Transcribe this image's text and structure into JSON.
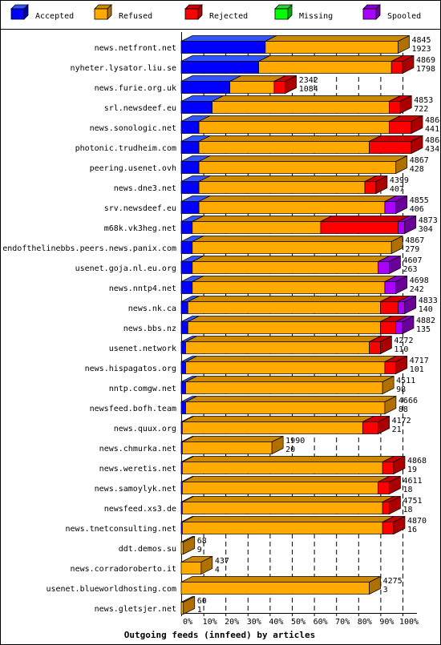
{
  "chart_data": {
    "type": "bar",
    "orientation": "horizontal",
    "stacked": true,
    "percent": true,
    "title": "Outgoing feeds (innfeed) by articles",
    "xlim": [
      0,
      100
    ],
    "x_ticks": [
      "0%",
      "10%",
      "20%",
      "30%",
      "40%",
      "50%",
      "60%",
      "70%",
      "80%",
      "90%",
      "100%"
    ],
    "legend_position": "top",
    "series_names": [
      "Accepted",
      "Refused",
      "Rejected",
      "Missing",
      "Spooled"
    ],
    "series_colors": [
      "#0000ff",
      "#ffaa00",
      "#ff0000",
      "#00ff00",
      "#aa00ff"
    ],
    "side_colors": [
      "#0000aa",
      "#b07000",
      "#aa0000",
      "#00aa00",
      "#6a0099"
    ],
    "top_colors": [
      "#3355ff",
      "#cc8800",
      "#cc0000",
      "#33cc33",
      "#8800cc"
    ],
    "rows": [
      {
        "name": "news.netfront.net",
        "offered": "4845",
        "accepted": "1923",
        "values": [
          38.0,
          60.0,
          0,
          0,
          0
        ],
        "scale": 1.0
      },
      {
        "name": "nyheter.lysator.liu.se",
        "offered": "4869",
        "accepted": "1798",
        "values": [
          35.0,
          60.0,
          5.0,
          0,
          0
        ],
        "scale": 1.0
      },
      {
        "name": "news.furie.org.uk",
        "offered": "2342",
        "accepted": "1084",
        "values": [
          22.0,
          20.0,
          5.0,
          0,
          0
        ],
        "scale": 1.0
      },
      {
        "name": "srl.newsdeef.eu",
        "offered": "4853",
        "accepted": "722",
        "values": [
          14.0,
          80.0,
          5.0,
          0,
          0
        ],
        "scale": 1.0
      },
      {
        "name": "news.sonologic.net",
        "offered": "4868",
        "accepted": "441",
        "values": [
          8.0,
          86.0,
          10.0,
          0,
          0
        ],
        "scale": 1.0
      },
      {
        "name": "photonic.trudheim.com",
        "offered": "4868",
        "accepted": "434",
        "values": [
          8.0,
          77.0,
          19.0,
          0,
          0
        ],
        "scale": 1.0
      },
      {
        "name": "peering.usenet.ovh",
        "offered": "4867",
        "accepted": "428",
        "values": [
          8.0,
          89.0,
          0,
          0,
          0
        ],
        "scale": 1.0
      },
      {
        "name": "news.dne3.net",
        "offered": "4399",
        "accepted": "407",
        "values": [
          8.0,
          75.0,
          5.0,
          0,
          0
        ],
        "scale": 1.0
      },
      {
        "name": "srv.newsdeef.eu",
        "offered": "4855",
        "accepted": "406",
        "values": [
          8.0,
          84.0,
          0,
          0,
          5.0
        ],
        "scale": 1.0
      },
      {
        "name": "m68k.vk3heg.net",
        "offered": "4873",
        "accepted": "304",
        "values": [
          5.0,
          58.0,
          35.0,
          0,
          3.0
        ],
        "scale": 1.0
      },
      {
        "name": "endofthelinebbs.peers.news.panix.com",
        "offered": "4867",
        "accepted": "279",
        "values": [
          5.0,
          90.0,
          0,
          0,
          0
        ],
        "scale": 1.0
      },
      {
        "name": "usenet.goja.nl.eu.org",
        "offered": "4607",
        "accepted": "263",
        "values": [
          5.0,
          84.0,
          0,
          0,
          5.0
        ],
        "scale": 1.0
      },
      {
        "name": "news.nntp4.net",
        "offered": "4698",
        "accepted": "242",
        "values": [
          5.0,
          87.0,
          0,
          0,
          5.0
        ],
        "scale": 1.0
      },
      {
        "name": "news.nk.ca",
        "offered": "4833",
        "accepted": "140",
        "values": [
          3.0,
          87.0,
          8.0,
          0,
          3.0
        ],
        "scale": 1.0
      },
      {
        "name": "news.bbs.nz",
        "offered": "4882",
        "accepted": "135",
        "values": [
          3.0,
          87.0,
          7.0,
          0,
          3.0
        ],
        "scale": 1.0
      },
      {
        "name": "usenet.network",
        "offered": "4272",
        "accepted": "110",
        "values": [
          2.0,
          83.0,
          5.0,
          0,
          0
        ],
        "scale": 1.0
      },
      {
        "name": "news.hispagatos.org",
        "offered": "4717",
        "accepted": "101",
        "values": [
          2.0,
          90.0,
          5.0,
          0,
          0
        ],
        "scale": 1.0
      },
      {
        "name": "nntp.comgw.net",
        "offered": "4511",
        "accepted": "98",
        "values": [
          2.0,
          89.0,
          0,
          0,
          0
        ],
        "scale": 1.0
      },
      {
        "name": "newsfeed.bofh.team",
        "offered": "4666",
        "accepted": "88",
        "values": [
          2.0,
          90.0,
          0,
          0,
          0
        ],
        "scale": 1.0
      },
      {
        "name": "news.quux.org",
        "offered": "4172",
        "accepted": "21",
        "values": [
          0.5,
          81.5,
          7.0,
          0,
          0
        ],
        "scale": 1.0
      },
      {
        "name": "news.chmurka.net",
        "offered": "1990",
        "accepted": "20",
        "values": [
          0.5,
          40.5,
          0,
          0,
          0
        ],
        "scale": 1.0
      },
      {
        "name": "news.weretis.net",
        "offered": "4868",
        "accepted": "19",
        "values": [
          0.5,
          90.5,
          5.0,
          0,
          0
        ],
        "scale": 1.0
      },
      {
        "name": "news.samoylyk.net",
        "offered": "4611",
        "accepted": "18",
        "values": [
          0.5,
          88.5,
          5.0,
          0,
          0
        ],
        "scale": 1.0
      },
      {
        "name": "newsfeed.xs3.de",
        "offered": "4751",
        "accepted": "18",
        "values": [
          0.5,
          90.5,
          3.0,
          0,
          0
        ],
        "scale": 1.0
      },
      {
        "name": "news.tnetconsulting.net",
        "offered": "4870",
        "accepted": "16",
        "values": [
          0.5,
          90.5,
          5.0,
          0,
          0
        ],
        "scale": 1.0
      },
      {
        "name": "ddt.demos.su",
        "offered": "68",
        "accepted": "9",
        "values": [
          0,
          1.0,
          0,
          0,
          0
        ],
        "scale": 1.0
      },
      {
        "name": "news.corradoroberto.it",
        "offered": "437",
        "accepted": "4",
        "values": [
          0,
          9.0,
          0,
          0,
          0
        ],
        "scale": 1.0
      },
      {
        "name": "usenet.blueworldhosting.com",
        "offered": "4275",
        "accepted": "3",
        "values": [
          0,
          85.0,
          0,
          0,
          0
        ],
        "scale": 1.0
      },
      {
        "name": "news.gletsjer.net",
        "offered": "60",
        "accepted": "1",
        "values": [
          0,
          1.0,
          0,
          0,
          0
        ],
        "scale": 1.0
      }
    ]
  }
}
